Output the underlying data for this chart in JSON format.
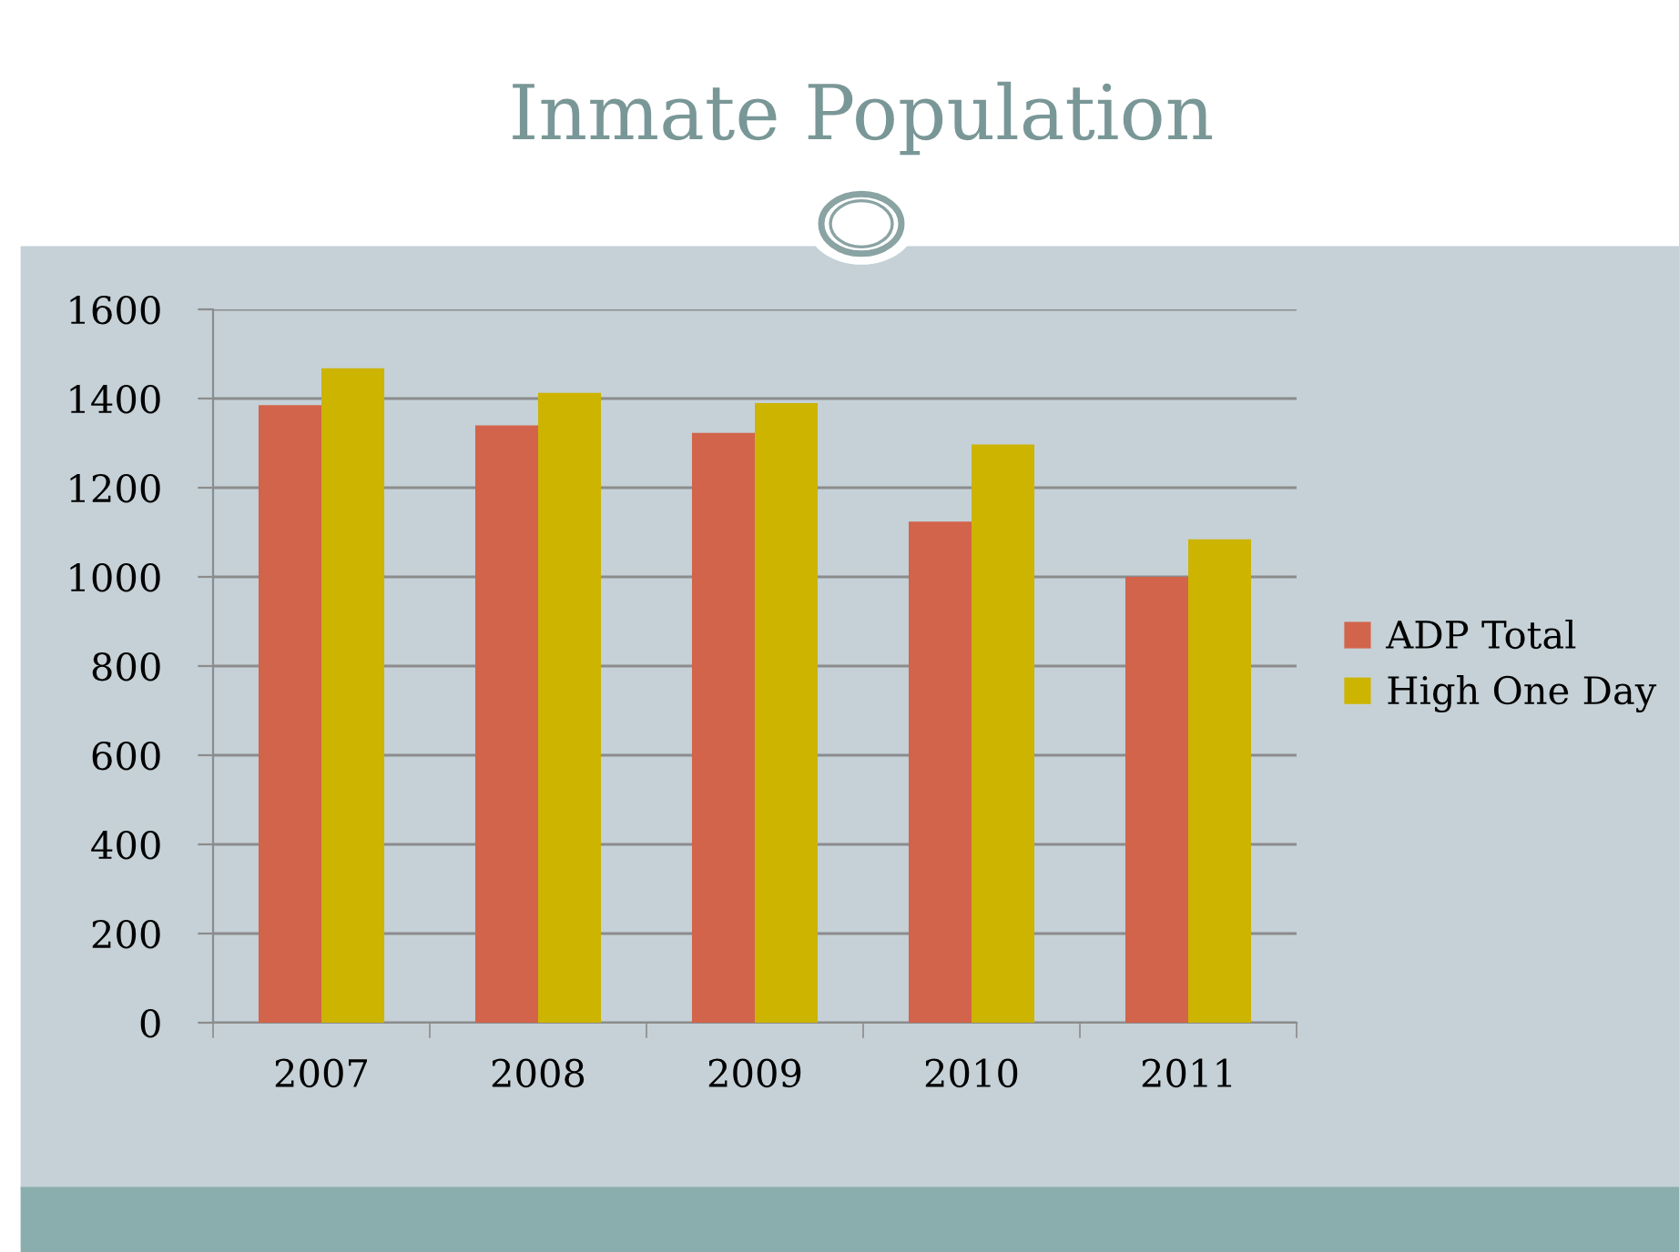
{
  "chart_data": {
    "type": "bar",
    "title": "Inmate Population",
    "categories": [
      "2007",
      "2008",
      "2009",
      "2010",
      "2011"
    ],
    "series": [
      {
        "name": "ADP Total",
        "color": "#d2644b",
        "values": [
          1385,
          1340,
          1323,
          1124,
          1000
        ]
      },
      {
        "name": "High One Day",
        "color": "#ccb400",
        "values": [
          1468,
          1413,
          1390,
          1297,
          1084
        ]
      }
    ],
    "ylim": [
      0,
      1600
    ],
    "yticks": [
      0,
      200,
      400,
      600,
      800,
      1000,
      1200,
      1400,
      1600
    ],
    "grid": "y",
    "legend": "right"
  }
}
